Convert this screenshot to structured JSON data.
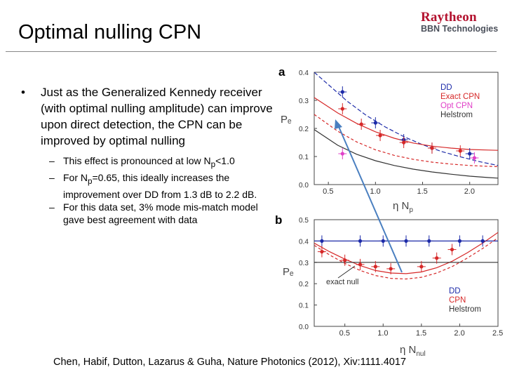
{
  "slide": {
    "title": "Optimal nulling CPN",
    "logo": {
      "brand": "Raytheon",
      "sub": "BBN Technologies"
    },
    "bullet": "Just as the Generalized Kennedy receiver (with optimal nulling amplitude) can improve upon direct detection, the CPN can be improved by optimal nulling",
    "sub_bullets": [
      {
        "pre": "This effect is pronounced at low N",
        "sub": "p",
        "post": "<1.0"
      },
      {
        "pre": "For N",
        "sub": "p",
        "post": "=0.65, this ideally increases the improvement over DD from 1.3 dB to 2.2 dB."
      },
      {
        "pre": "For this data set, 3% mode mis-match model gave best agreement with data",
        "sub": "",
        "post": ""
      }
    ],
    "citation": "Chen, Habif, Dutton, Lazarus & Guha, Nature Photonics (2012), Xiv:1111.4017"
  },
  "colors": {
    "dd": "#1c2aa8",
    "cpn": "#d62828",
    "opt": "#e040c8",
    "hel": "#333333",
    "arrow": "#4a7fc0"
  },
  "chart_data": [
    {
      "type": "line",
      "panel_label": "a",
      "ylabel": "Pₑ",
      "xlabel": "η N",
      "xlabel_sub": "p",
      "xlim": [
        0.35,
        2.3
      ],
      "ylim": [
        0,
        0.4
      ],
      "xticks": [
        "0.5",
        "1.0",
        "1.5",
        "2.0"
      ],
      "xtick_values": [
        0.5,
        1.0,
        1.5,
        2.0
      ],
      "yticks": [
        "0.0",
        "0.1",
        "0.2",
        "0.3",
        "0.4"
      ],
      "ytick_values": [
        0,
        0.1,
        0.2,
        0.3,
        0.4
      ],
      "legend": [
        "DD",
        "Exact CPN",
        "Opt CPN",
        "Helstrom"
      ],
      "series": [
        {
          "name": "DD",
          "color": "#1c2aa8",
          "dash": "6,3",
          "x": [
            0.35,
            0.5,
            0.7,
            0.9,
            1.1,
            1.3,
            1.5,
            1.7,
            1.9,
            2.1,
            2.3
          ],
          "y": [
            0.4,
            0.356,
            0.297,
            0.247,
            0.206,
            0.171,
            0.142,
            0.118,
            0.099,
            0.082,
            0.068
          ]
        },
        {
          "name": "Exact CPN",
          "color": "#d62828",
          "dash": "",
          "x": [
            0.35,
            0.6,
            0.8,
            1.0,
            1.2,
            1.4,
            1.6,
            1.8,
            2.0,
            2.2,
            2.3
          ],
          "y": [
            0.31,
            0.255,
            0.218,
            0.188,
            0.165,
            0.148,
            0.137,
            0.13,
            0.125,
            0.123,
            0.122
          ]
        },
        {
          "name": "Opt CPN",
          "color": "#d62828",
          "dash": "4,3",
          "x": [
            0.35,
            0.6,
            0.8,
            1.0,
            1.2,
            1.4,
            1.6,
            1.8,
            2.0,
            2.2,
            2.3
          ],
          "y": [
            0.25,
            0.19,
            0.152,
            0.124,
            0.104,
            0.09,
            0.08,
            0.073,
            0.068,
            0.065,
            0.064
          ]
        },
        {
          "name": "Helstrom",
          "color": "#333333",
          "dash": "",
          "x": [
            0.35,
            0.6,
            0.8,
            1.0,
            1.2,
            1.4,
            1.6,
            1.8,
            2.0,
            2.2,
            2.3
          ],
          "y": [
            0.196,
            0.14,
            0.108,
            0.085,
            0.068,
            0.055,
            0.045,
            0.037,
            0.03,
            0.025,
            0.023
          ]
        }
      ],
      "points": [
        {
          "color": "#1c2aa8",
          "x": [
            0.65,
            1.0,
            1.3,
            1.6,
            2.0
          ],
          "y": [
            0.33,
            0.22,
            0.16,
            0.13,
            0.11
          ]
        },
        {
          "color": "#d62828",
          "x": [
            0.65,
            0.85,
            1.05,
            1.3,
            1.6,
            1.9
          ],
          "y": [
            0.27,
            0.215,
            0.175,
            0.15,
            0.13,
            0.12
          ]
        },
        {
          "color": "#e040c8",
          "x": [
            0.65,
            2.05
          ],
          "y": [
            0.11,
            0.095
          ]
        }
      ]
    },
    {
      "type": "line",
      "panel_label": "b",
      "ylabel": "Pₑ",
      "xlabel": "η N",
      "xlabel_sub": "nul",
      "xlim": [
        0.1,
        2.5
      ],
      "ylim": [
        0,
        0.5
      ],
      "xticks": [
        "0.5",
        "1.0",
        "1.5",
        "2.0",
        "2.5"
      ],
      "xtick_values": [
        0.5,
        1.0,
        1.5,
        2.0,
        2.5
      ],
      "yticks": [
        "0.0",
        "0.1",
        "0.2",
        "0.3",
        "0.4",
        "0.5"
      ],
      "ytick_values": [
        0,
        0.1,
        0.2,
        0.3,
        0.4,
        0.5
      ],
      "legend": [
        "DD",
        "CPN",
        "Helstrom"
      ],
      "annotation": "exact null",
      "series": [
        {
          "name": "DD",
          "color": "#1c2aa8",
          "dash": "",
          "x": [
            0.1,
            2.5
          ],
          "y": [
            0.4,
            0.4
          ]
        },
        {
          "name": "CPN",
          "color": "#d62828",
          "dash": "",
          "x": [
            0.1,
            0.3,
            0.5,
            0.7,
            0.9,
            1.1,
            1.3,
            1.5,
            1.7,
            1.9,
            2.1,
            2.3,
            2.5
          ],
          "y": [
            0.39,
            0.35,
            0.315,
            0.285,
            0.262,
            0.25,
            0.247,
            0.255,
            0.275,
            0.305,
            0.345,
            0.39,
            0.44
          ]
        },
        {
          "name": "CPN (model)",
          "color": "#d62828",
          "dash": "4,3",
          "x": [
            0.1,
            0.3,
            0.5,
            0.7,
            0.9,
            1.1,
            1.3,
            1.5,
            1.7,
            1.9,
            2.1,
            2.3,
            2.5
          ],
          "y": [
            0.38,
            0.335,
            0.295,
            0.262,
            0.238,
            0.225,
            0.222,
            0.23,
            0.25,
            0.28,
            0.32,
            0.365,
            0.415
          ]
        },
        {
          "name": "Helstrom",
          "color": "#333333",
          "dash": "",
          "x": [
            0.1,
            2.5
          ],
          "y": [
            0.3,
            0.3
          ]
        }
      ],
      "points": [
        {
          "color": "#1c2aa8",
          "x": [
            0.2,
            0.7,
            1.0,
            1.3,
            1.6,
            2.0,
            2.3
          ],
          "y": [
            0.4,
            0.4,
            0.4,
            0.4,
            0.4,
            0.4,
            0.4
          ]
        },
        {
          "color": "#d62828",
          "x": [
            0.2,
            0.5,
            0.7,
            0.9,
            1.1,
            1.5,
            1.7,
            1.9
          ],
          "y": [
            0.35,
            0.31,
            0.29,
            0.28,
            0.27,
            0.28,
            0.32,
            0.36
          ]
        }
      ]
    }
  ]
}
